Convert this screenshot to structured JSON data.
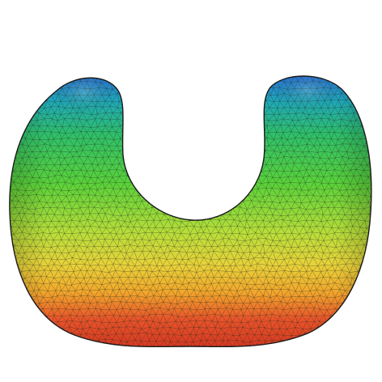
{
  "scene": {
    "subject": "horseshoe-shaped-triangulated-surface",
    "colors": {
      "background": "#ffffff",
      "outline": "#1a1a1a",
      "mesh_line": "#1e2a1e",
      "gradient": [
        "#2a6fd6",
        "#1fa8b8",
        "#2fbf6a",
        "#5ad23a",
        "#b8de3a",
        "#e8d23a",
        "#f2a72c",
        "#e8542a",
        "#d63a22"
      ]
    },
    "mesh": {
      "edge_opacity": 0.55
    }
  }
}
